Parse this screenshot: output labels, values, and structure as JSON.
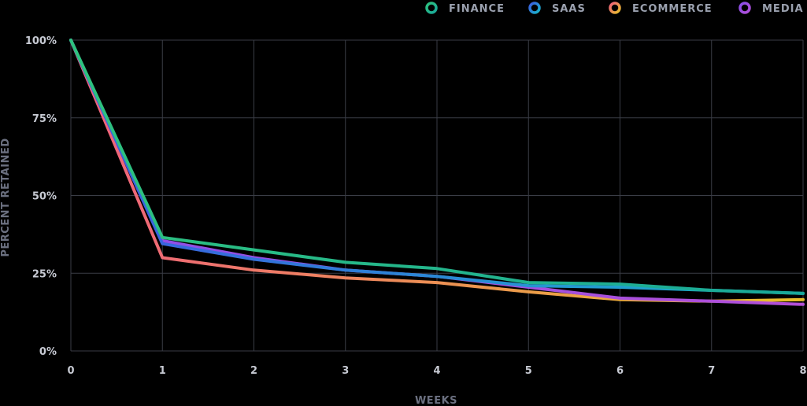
{
  "chart_data": {
    "type": "line",
    "xlabel": "WEEKS",
    "ylabel": "PERCENT RETAINED",
    "x": [
      0,
      1,
      2,
      3,
      4,
      5,
      6,
      7,
      8
    ],
    "xlim": [
      0,
      8
    ],
    "ylim": [
      0,
      100
    ],
    "yticks": [
      "0%",
      "25%",
      "50%",
      "75%",
      "100%"
    ],
    "xticks": [
      "0",
      "1",
      "2",
      "3",
      "4",
      "5",
      "6",
      "7",
      "8"
    ],
    "grid": true,
    "legend_position": "top-right",
    "series": [
      {
        "name": "FINANCE",
        "color_start": "#2ec27e",
        "color_end": "#19a89a",
        "values": [
          100,
          36.5,
          32.5,
          28.5,
          26.5,
          22,
          21.5,
          19.5,
          18.5
        ]
      },
      {
        "name": "SAAS",
        "color_start": "#3d5be0",
        "color_end": "#17b6c9",
        "values": [
          100,
          34.5,
          29.5,
          26,
          24,
          21,
          20.5,
          19.5,
          18.5
        ]
      },
      {
        "name": "ECOMMERCE",
        "color_start": "#f0607e",
        "color_end": "#e8c02a",
        "values": [
          100,
          30,
          26,
          23.5,
          22,
          19,
          16.5,
          16,
          16.5
        ]
      },
      {
        "name": "MEDIA",
        "color_start": "#8a4fe8",
        "color_end": "#b24fd8",
        "values": [
          100,
          35.5,
          30,
          26,
          24,
          20.5,
          17,
          16,
          15
        ]
      }
    ]
  }
}
